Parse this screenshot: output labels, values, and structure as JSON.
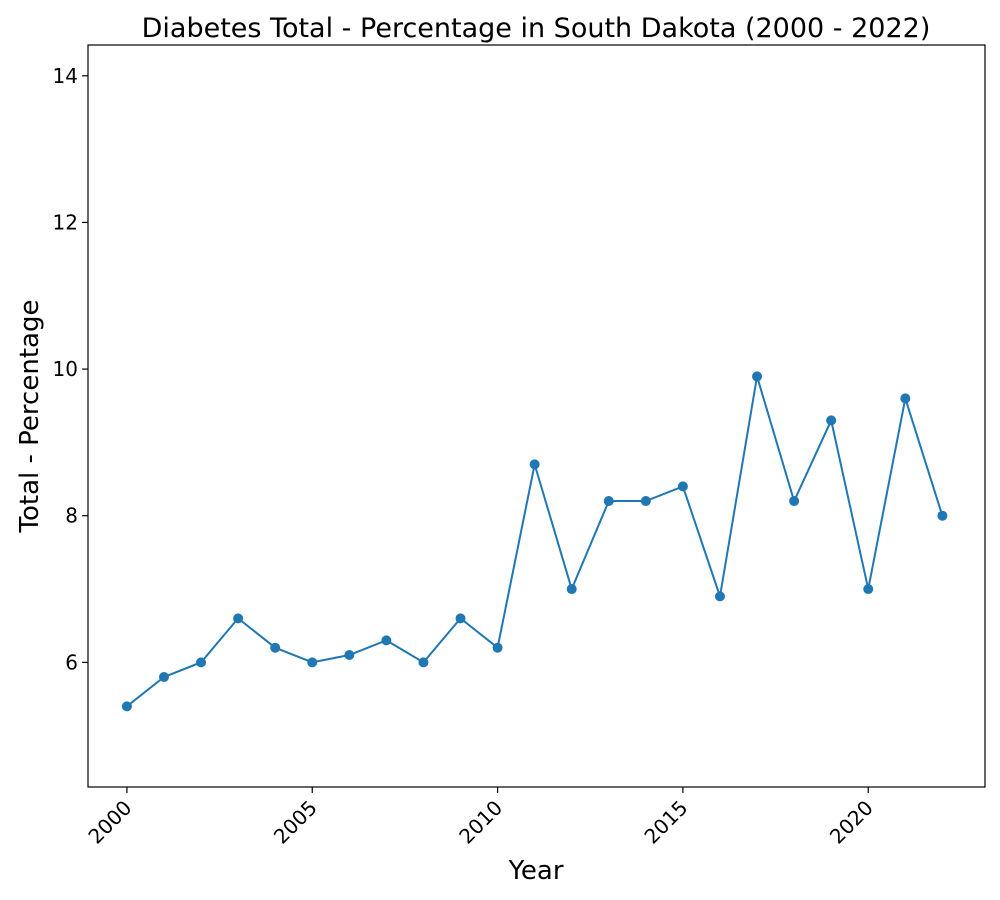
{
  "chart_data": {
    "type": "line",
    "title": "Diabetes Total - Percentage in South Dakota (2000 - 2022)",
    "xlabel": "Year",
    "ylabel": "Total - Percentage",
    "x": [
      2000,
      2001,
      2002,
      2003,
      2004,
      2005,
      2006,
      2007,
      2008,
      2009,
      2010,
      2011,
      2012,
      2013,
      2014,
      2015,
      2016,
      2017,
      2018,
      2019,
      2020,
      2021,
      2022
    ],
    "series": [
      {
        "values": [
          5.4,
          5.8,
          6.0,
          6.6,
          6.2,
          6.0,
          6.1,
          6.3,
          6.0,
          6.6,
          6.2,
          8.7,
          7.0,
          8.2,
          8.2,
          8.4,
          6.9,
          9.9,
          8.2,
          9.3,
          7.0,
          9.6,
          8.0
        ],
        "color": "#1f77b4",
        "marker": "circle"
      }
    ],
    "xticks": [
      "2000",
      "2005",
      "2010",
      "2015",
      "2020"
    ],
    "yticks": [
      "6",
      "8",
      "10",
      "12",
      "14"
    ],
    "xlim": [
      1998.95,
      2023.15
    ],
    "ylim": [
      4.3,
      14.42
    ],
    "grid": false,
    "xtick_rotation": 45
  }
}
